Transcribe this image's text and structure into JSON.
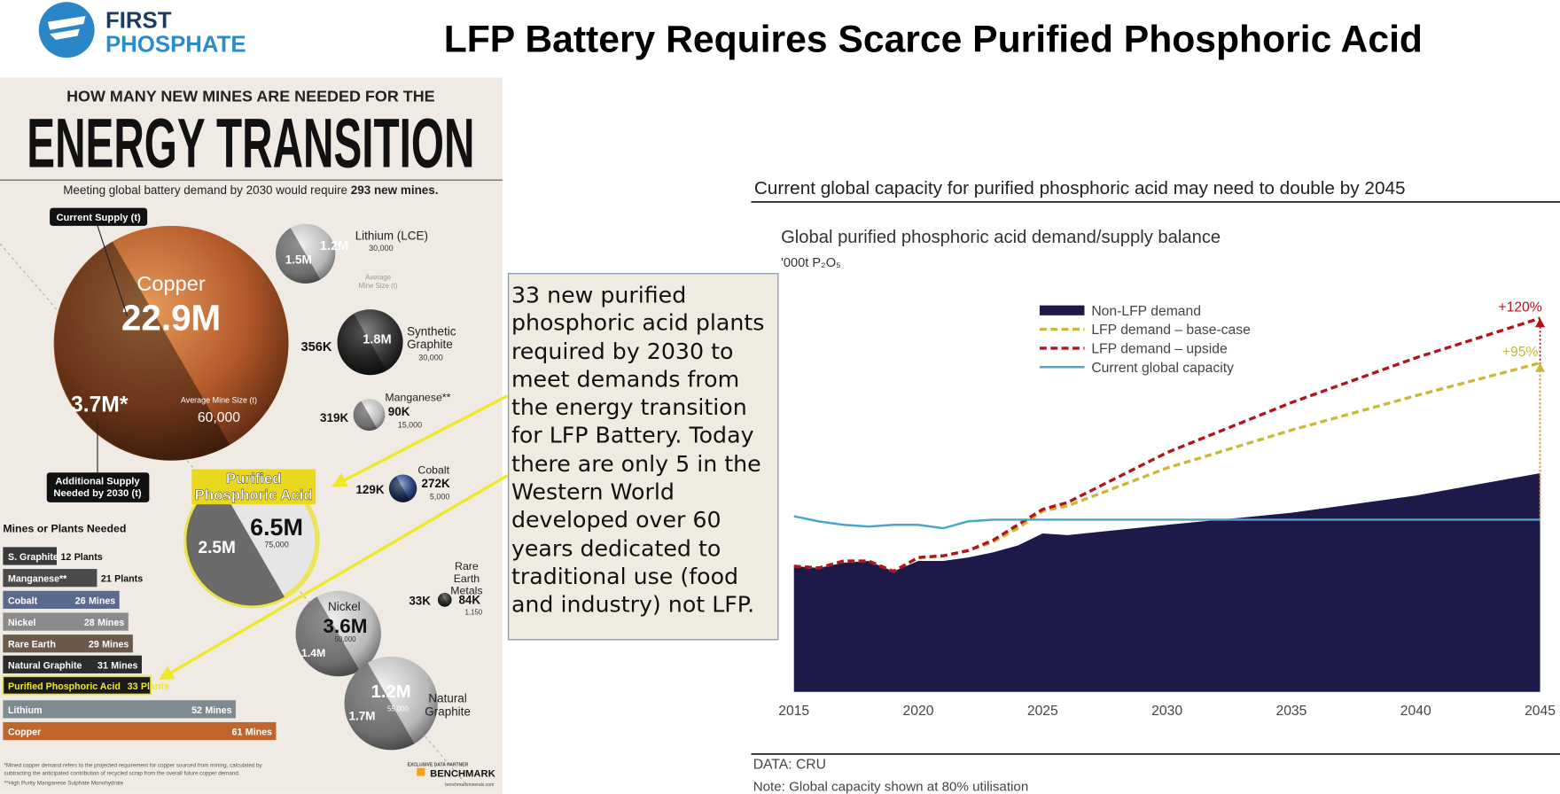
{
  "header": {
    "logo_line1": "FIRST",
    "logo_line2": "PHOSPHATE",
    "title": "LFP Battery Requires Scarce Purified Phosphoric Acid"
  },
  "infographic": {
    "kicker": "HOW MANY NEW MINES ARE NEEDED FOR THE",
    "title": "ENERGY TRANSITION",
    "subtitle_start": "Meeting global battery demand by 2030 would require ",
    "subtitle_bold": "293 new mines.",
    "current_supply_label": "Current Supply (t)",
    "additional_supply_label": "Additional Supply Needed by 2030 (t)",
    "avg_mine_size_label": "Average Mine Size (t)",
    "bubbles": [
      {
        "name": "Copper",
        "current": "22.9M",
        "additional": "3.7M*",
        "avg": "60,000"
      },
      {
        "name": "Lithium (LCE)",
        "current": "1.2M",
        "additional": "1.5M",
        "avg": "30,000"
      },
      {
        "name": "Synthetic Graphite",
        "current": "1.8M",
        "additional": "356K",
        "avg": "30,000"
      },
      {
        "name": "Manganese**",
        "current": "90K",
        "additional": "319K",
        "avg": "15,000"
      },
      {
        "name": "Cobalt",
        "current": "272K",
        "additional": "129K",
        "avg": "5,000"
      },
      {
        "name": "Purified Phosphoric Acid",
        "current": "6.5M",
        "additional": "2.5M",
        "avg": "75,000"
      },
      {
        "name": "Rare Earth Metals",
        "current": "84K",
        "additional": "33K",
        "avg": "1,150"
      },
      {
        "name": "Nickel",
        "current": "3.6M",
        "additional": "1.4M",
        "avg": "50,000"
      },
      {
        "name": "Natural Graphite",
        "current": "1.2M",
        "additional": "1.7M",
        "avg": "55,000"
      }
    ],
    "bars_heading": "Mines or Plants Needed",
    "bars": [
      {
        "name": "S. Graphite",
        "count": 12,
        "unit": "Plants"
      },
      {
        "name": "Manganese**",
        "count": 21,
        "unit": "Plants"
      },
      {
        "name": "Cobalt",
        "count": 26,
        "unit": "Mines"
      },
      {
        "name": "Nickel",
        "count": 28,
        "unit": "Mines"
      },
      {
        "name": "Rare Earth",
        "count": 29,
        "unit": "Mines"
      },
      {
        "name": "Natural Graphite",
        "count": 31,
        "unit": "Mines"
      },
      {
        "name": "Purified Phosphoric Acid",
        "count": 33,
        "unit": "Plants"
      },
      {
        "name": "Lithium",
        "count": 52,
        "unit": "Mines"
      },
      {
        "name": "Copper",
        "count": 61,
        "unit": "Mines"
      }
    ],
    "footnotes": [
      "*Mined copper demand refers to the projected requirement for copper sourced from mining, calculated by subtracting the anticipated contribution of recycled scrap from the overall future copper demand.",
      "**High Purity Manganese Sulphate Monohydrate"
    ],
    "partner_label": "EXCLUSIVE DATA PARTNER",
    "partner": "BENCHMARK",
    "partner_url": "benchmarkminerals.com"
  },
  "callout": {
    "text": "33 new purified phosphoric acid plants required by 2030 to meet demands from the energy transition for LFP Battery. Today there are only 5 in the Western World developed over 60 years dedicated to traditional use (food and industry) not LFP."
  },
  "chart_data": {
    "type": "line",
    "heading": "Current global capacity for purified phosphoric acid may need to double by 2045",
    "title": "Global purified phosphoric acid demand/supply balance",
    "subtitle": "'000t P₂O₅",
    "x": [
      2015,
      2016,
      2017,
      2018,
      2019,
      2020,
      2021,
      2022,
      2023,
      2024,
      2025,
      2026,
      2030,
      2035,
      2040,
      2045
    ],
    "xlim": [
      2015,
      2045
    ],
    "xticks": [
      2015,
      2020,
      2025,
      2030,
      2035,
      2040,
      2045
    ],
    "ylim": [
      0,
      234
    ],
    "series": [
      {
        "name": "Non-LFP demand",
        "style": "area",
        "color": "#1d1a4a",
        "values": [
          73,
          72,
          75,
          76,
          70,
          76,
          76,
          78,
          81,
          85,
          92,
          91,
          97,
          104,
          114,
          127
        ]
      },
      {
        "name": "LFP demand – base-case",
        "style": "dashed",
        "color": "#cbb836",
        "values": [
          73,
          72,
          76,
          76,
          70,
          78,
          79,
          82,
          87,
          95,
          105,
          108,
          130,
          152,
          172,
          191
        ]
      },
      {
        "name": "LFP demand – upside",
        "style": "dashed",
        "color": "#b3141c",
        "values": [
          73,
          72,
          76,
          76,
          70,
          78,
          79,
          82,
          88,
          97,
          106,
          110,
          139,
          168,
          194,
          217
        ]
      },
      {
        "name": "Current global capacity",
        "style": "solid",
        "color": "#4aa6c6",
        "values": [
          102,
          99,
          97,
          96,
          97,
          97,
          95,
          99,
          100,
          100,
          100,
          100,
          100,
          100,
          100,
          100
        ]
      }
    ],
    "annotations": [
      {
        "text": "+120%"
      },
      {
        "text": "+95%"
      }
    ],
    "source": "DATA: CRU",
    "note": "Note: Global capacity shown at 80% utilisation"
  }
}
